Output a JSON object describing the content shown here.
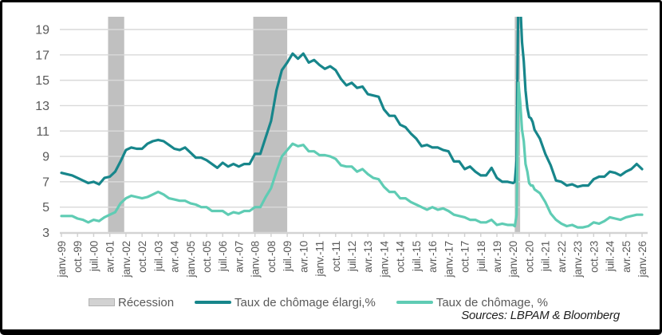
{
  "source": {
    "text": "Sources: LBPAM & Bloomberg"
  },
  "legend": {
    "recession_label": "Récession",
    "elargi_label": "Taux de chômage élargi,%",
    "chomage_label": "Taux de chômage, %"
  },
  "chart_data": {
    "type": "line",
    "title": "",
    "xlabel": "",
    "ylabel": "",
    "ylim": [
      3,
      20
    ],
    "yticks": [
      3,
      5,
      7,
      9,
      11,
      13,
      15,
      17,
      19
    ],
    "x_range": [
      1999.0,
      2026.0
    ],
    "xtick_interval_months": 9,
    "xtick_labels": [
      "janv.-99",
      "oct.-99",
      "juil.-00",
      "avr.-01",
      "janv.-02",
      "oct.-02",
      "juil.-03",
      "avr.-04",
      "janv.-05",
      "oct.-05",
      "juil.-06",
      "avr.-07",
      "janv.-08",
      "oct.-08",
      "juil.-09",
      "avr.-10",
      "janv.-11",
      "oct.-11",
      "juil.-12",
      "avr.-13",
      "janv.-14",
      "oct.-14",
      "juil.-15",
      "avr.-16",
      "janv.-17",
      "oct.-17",
      "juil.-18",
      "avr.-19",
      "janv.-20",
      "oct.-20",
      "juil.-21",
      "avr.-22",
      "janv.-23",
      "oct.-23",
      "juil.-24",
      "avr.-25",
      "janv.-26"
    ],
    "grid": "horizontal",
    "legend_position": "bottom",
    "colors": {
      "grid": "#d9d9d9",
      "axis": "#d0d0d0",
      "tick_labels": "#595959",
      "recession": "#c0c0c0"
    },
    "recession_bands": [
      {
        "label": "Récession",
        "from": 2001.17,
        "to": 2001.92
      },
      {
        "label": "Récession",
        "from": 2007.92,
        "to": 2009.5
      },
      {
        "label": "Récession",
        "from": 2020.08,
        "to": 2020.33
      }
    ],
    "series": [
      {
        "name": "Taux de chômage élargi,%",
        "color": "#17868b",
        "points": [
          [
            1999.0,
            7.7
          ],
          [
            1999.25,
            7.6
          ],
          [
            1999.5,
            7.5
          ],
          [
            1999.75,
            7.3
          ],
          [
            2000.0,
            7.1
          ],
          [
            2000.25,
            6.9
          ],
          [
            2000.5,
            7.0
          ],
          [
            2000.75,
            6.8
          ],
          [
            2001.0,
            7.3
          ],
          [
            2001.25,
            7.4
          ],
          [
            2001.5,
            7.8
          ],
          [
            2001.75,
            8.6
          ],
          [
            2002.0,
            9.5
          ],
          [
            2002.25,
            9.7
          ],
          [
            2002.5,
            9.6
          ],
          [
            2002.75,
            9.6
          ],
          [
            2003.0,
            10.0
          ],
          [
            2003.25,
            10.2
          ],
          [
            2003.5,
            10.3
          ],
          [
            2003.75,
            10.2
          ],
          [
            2004.0,
            9.9
          ],
          [
            2004.25,
            9.6
          ],
          [
            2004.5,
            9.5
          ],
          [
            2004.75,
            9.7
          ],
          [
            2005.0,
            9.3
          ],
          [
            2005.25,
            8.9
          ],
          [
            2005.5,
            8.9
          ],
          [
            2005.75,
            8.7
          ],
          [
            2006.0,
            8.4
          ],
          [
            2006.25,
            8.1
          ],
          [
            2006.5,
            8.5
          ],
          [
            2006.75,
            8.2
          ],
          [
            2007.0,
            8.4
          ],
          [
            2007.25,
            8.2
          ],
          [
            2007.5,
            8.4
          ],
          [
            2007.75,
            8.4
          ],
          [
            2008.0,
            9.2
          ],
          [
            2008.25,
            9.2
          ],
          [
            2008.5,
            10.5
          ],
          [
            2008.75,
            11.8
          ],
          [
            2009.0,
            14.2
          ],
          [
            2009.25,
            15.8
          ],
          [
            2009.5,
            16.4
          ],
          [
            2009.75,
            17.1
          ],
          [
            2010.0,
            16.7
          ],
          [
            2010.25,
            17.1
          ],
          [
            2010.5,
            16.4
          ],
          [
            2010.75,
            16.6
          ],
          [
            2011.0,
            16.2
          ],
          [
            2011.25,
            15.9
          ],
          [
            2011.5,
            16.1
          ],
          [
            2011.75,
            15.8
          ],
          [
            2012.0,
            15.1
          ],
          [
            2012.25,
            14.6
          ],
          [
            2012.5,
            14.8
          ],
          [
            2012.75,
            14.4
          ],
          [
            2013.0,
            14.5
          ],
          [
            2013.25,
            13.9
          ],
          [
            2013.5,
            13.8
          ],
          [
            2013.75,
            13.7
          ],
          [
            2014.0,
            12.7
          ],
          [
            2014.25,
            12.2
          ],
          [
            2014.5,
            12.2
          ],
          [
            2014.75,
            11.5
          ],
          [
            2015.0,
            11.3
          ],
          [
            2015.25,
            10.8
          ],
          [
            2015.5,
            10.4
          ],
          [
            2015.75,
            9.8
          ],
          [
            2016.0,
            9.9
          ],
          [
            2016.25,
            9.7
          ],
          [
            2016.5,
            9.7
          ],
          [
            2016.75,
            9.5
          ],
          [
            2017.0,
            9.4
          ],
          [
            2017.25,
            8.6
          ],
          [
            2017.5,
            8.6
          ],
          [
            2017.75,
            8.0
          ],
          [
            2018.0,
            8.2
          ],
          [
            2018.25,
            7.8
          ],
          [
            2018.5,
            7.5
          ],
          [
            2018.75,
            7.5
          ],
          [
            2019.0,
            8.1
          ],
          [
            2019.25,
            7.3
          ],
          [
            2019.5,
            7.0
          ],
          [
            2019.75,
            7.0
          ],
          [
            2020.0,
            6.9
          ],
          [
            2020.083,
            7.0
          ],
          [
            2020.167,
            8.7
          ],
          [
            2020.25,
            22.9
          ],
          [
            2020.333,
            21.2
          ],
          [
            2020.417,
            18.0
          ],
          [
            2020.5,
            16.5
          ],
          [
            2020.583,
            14.2
          ],
          [
            2020.667,
            12.8
          ],
          [
            2020.75,
            12.1
          ],
          [
            2020.833,
            12.0
          ],
          [
            2020.917,
            11.7
          ],
          [
            2021.0,
            11.1
          ],
          [
            2021.25,
            10.4
          ],
          [
            2021.5,
            9.2
          ],
          [
            2021.75,
            8.3
          ],
          [
            2022.0,
            7.1
          ],
          [
            2022.25,
            7.0
          ],
          [
            2022.5,
            6.7
          ],
          [
            2022.75,
            6.8
          ],
          [
            2023.0,
            6.6
          ],
          [
            2023.25,
            6.7
          ],
          [
            2023.5,
            6.7
          ],
          [
            2023.75,
            7.2
          ],
          [
            2024.0,
            7.4
          ],
          [
            2024.25,
            7.4
          ],
          [
            2024.5,
            7.8
          ],
          [
            2024.75,
            7.7
          ],
          [
            2025.0,
            7.5
          ],
          [
            2025.25,
            7.8
          ],
          [
            2025.5,
            8.0
          ],
          [
            2025.75,
            8.4
          ],
          [
            2026.0,
            8.0
          ]
        ]
      },
      {
        "name": "Taux de chômage, %",
        "color": "#5fccb4",
        "points": [
          [
            1999.0,
            4.3
          ],
          [
            1999.25,
            4.3
          ],
          [
            1999.5,
            4.3
          ],
          [
            1999.75,
            4.1
          ],
          [
            2000.0,
            4.0
          ],
          [
            2000.25,
            3.8
          ],
          [
            2000.5,
            4.0
          ],
          [
            2000.75,
            3.9
          ],
          [
            2001.0,
            4.2
          ],
          [
            2001.25,
            4.4
          ],
          [
            2001.5,
            4.6
          ],
          [
            2001.75,
            5.3
          ],
          [
            2002.0,
            5.7
          ],
          [
            2002.25,
            5.9
          ],
          [
            2002.5,
            5.8
          ],
          [
            2002.75,
            5.7
          ],
          [
            2003.0,
            5.8
          ],
          [
            2003.25,
            6.0
          ],
          [
            2003.5,
            6.2
          ],
          [
            2003.75,
            6.0
          ],
          [
            2004.0,
            5.7
          ],
          [
            2004.25,
            5.6
          ],
          [
            2004.5,
            5.5
          ],
          [
            2004.75,
            5.5
          ],
          [
            2005.0,
            5.3
          ],
          [
            2005.25,
            5.2
          ],
          [
            2005.5,
            5.0
          ],
          [
            2005.75,
            5.0
          ],
          [
            2006.0,
            4.7
          ],
          [
            2006.25,
            4.7
          ],
          [
            2006.5,
            4.7
          ],
          [
            2006.75,
            4.4
          ],
          [
            2007.0,
            4.6
          ],
          [
            2007.25,
            4.5
          ],
          [
            2007.5,
            4.7
          ],
          [
            2007.75,
            4.7
          ],
          [
            2008.0,
            5.0
          ],
          [
            2008.25,
            5.0
          ],
          [
            2008.5,
            5.8
          ],
          [
            2008.75,
            6.5
          ],
          [
            2009.0,
            7.8
          ],
          [
            2009.25,
            9.0
          ],
          [
            2009.5,
            9.5
          ],
          [
            2009.75,
            10.0
          ],
          [
            2010.0,
            9.8
          ],
          [
            2010.25,
            9.9
          ],
          [
            2010.5,
            9.4
          ],
          [
            2010.75,
            9.4
          ],
          [
            2011.0,
            9.1
          ],
          [
            2011.25,
            9.1
          ],
          [
            2011.5,
            9.0
          ],
          [
            2011.75,
            8.8
          ],
          [
            2012.0,
            8.3
          ],
          [
            2012.25,
            8.2
          ],
          [
            2012.5,
            8.2
          ],
          [
            2012.75,
            7.8
          ],
          [
            2013.0,
            8.0
          ],
          [
            2013.25,
            7.6
          ],
          [
            2013.5,
            7.3
          ],
          [
            2013.75,
            7.2
          ],
          [
            2014.0,
            6.6
          ],
          [
            2014.25,
            6.2
          ],
          [
            2014.5,
            6.2
          ],
          [
            2014.75,
            5.7
          ],
          [
            2015.0,
            5.7
          ],
          [
            2015.25,
            5.4
          ],
          [
            2015.5,
            5.2
          ],
          [
            2015.75,
            5.0
          ],
          [
            2016.0,
            4.8
          ],
          [
            2016.25,
            5.0
          ],
          [
            2016.5,
            4.8
          ],
          [
            2016.75,
            4.9
          ],
          [
            2017.0,
            4.7
          ],
          [
            2017.25,
            4.4
          ],
          [
            2017.5,
            4.3
          ],
          [
            2017.75,
            4.2
          ],
          [
            2018.0,
            4.0
          ],
          [
            2018.25,
            4.0
          ],
          [
            2018.5,
            3.8
          ],
          [
            2018.75,
            3.8
          ],
          [
            2019.0,
            4.0
          ],
          [
            2019.25,
            3.6
          ],
          [
            2019.5,
            3.7
          ],
          [
            2019.75,
            3.6
          ],
          [
            2020.0,
            3.6
          ],
          [
            2020.083,
            3.5
          ],
          [
            2020.167,
            4.4
          ],
          [
            2020.25,
            14.8
          ],
          [
            2020.333,
            13.3
          ],
          [
            2020.417,
            11.1
          ],
          [
            2020.5,
            10.2
          ],
          [
            2020.583,
            8.4
          ],
          [
            2020.667,
            7.8
          ],
          [
            2020.75,
            6.9
          ],
          [
            2020.833,
            6.7
          ],
          [
            2020.917,
            6.7
          ],
          [
            2021.0,
            6.4
          ],
          [
            2021.25,
            6.1
          ],
          [
            2021.5,
            5.4
          ],
          [
            2021.75,
            4.5
          ],
          [
            2022.0,
            4.0
          ],
          [
            2022.25,
            3.7
          ],
          [
            2022.5,
            3.5
          ],
          [
            2022.75,
            3.6
          ],
          [
            2023.0,
            3.4
          ],
          [
            2023.25,
            3.4
          ],
          [
            2023.5,
            3.5
          ],
          [
            2023.75,
            3.8
          ],
          [
            2024.0,
            3.7
          ],
          [
            2024.25,
            3.9
          ],
          [
            2024.5,
            4.2
          ],
          [
            2024.75,
            4.1
          ],
          [
            2025.0,
            4.0
          ],
          [
            2025.25,
            4.2
          ],
          [
            2025.5,
            4.3
          ],
          [
            2025.75,
            4.4
          ],
          [
            2026.0,
            4.4
          ]
        ]
      }
    ]
  }
}
